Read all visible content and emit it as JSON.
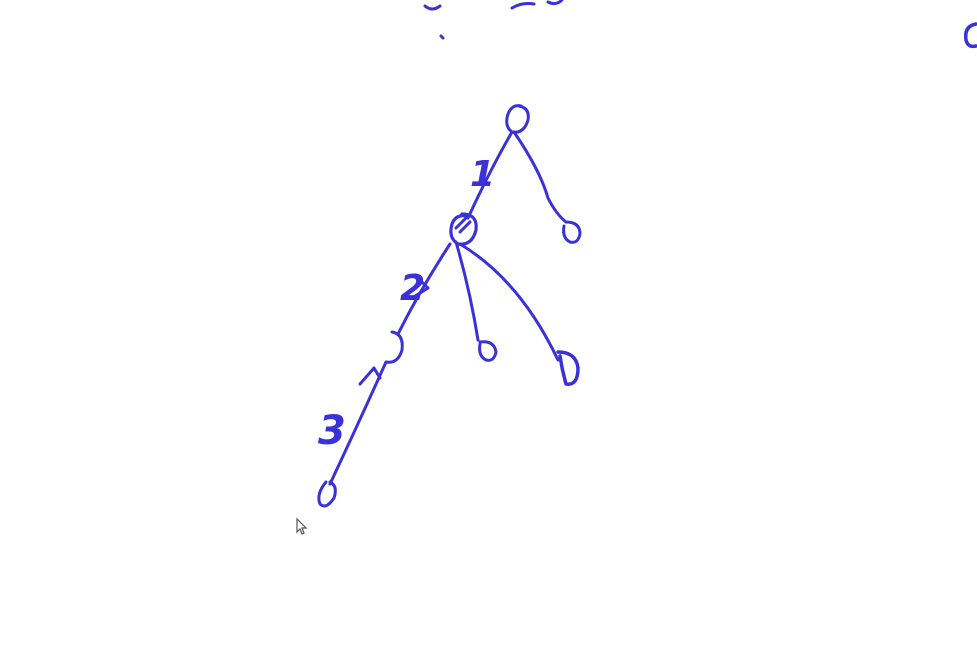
{
  "colors": {
    "background": "#ffffff",
    "ink": "#3a32d8",
    "cursor": "#555555"
  },
  "diagram": {
    "nodes": [
      {
        "id": "root"
      },
      {
        "id": "root-right-leaf"
      },
      {
        "id": "mid"
      },
      {
        "id": "mid-leaf-a"
      },
      {
        "id": "mid-leaf-b"
      },
      {
        "id": "lower"
      },
      {
        "id": "bottom"
      }
    ],
    "edges": [
      {
        "from": "root",
        "to": "mid",
        "label": "1"
      },
      {
        "from": "root",
        "to": "root-right-leaf",
        "label": ""
      },
      {
        "from": "mid",
        "to": "lower",
        "label": "2"
      },
      {
        "from": "mid",
        "to": "mid-leaf-a",
        "label": ""
      },
      {
        "from": "mid",
        "to": "mid-leaf-b",
        "label": ""
      },
      {
        "from": "lower",
        "to": "bottom",
        "label": "3"
      }
    ]
  }
}
